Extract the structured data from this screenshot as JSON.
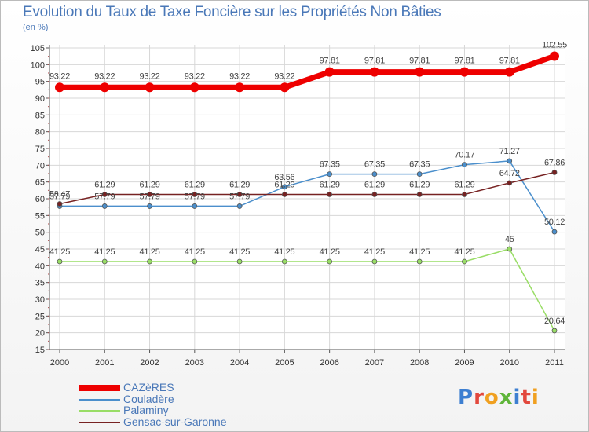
{
  "chart_data": {
    "type": "line",
    "title": "Evolution du Taux de Taxe Foncière sur les Propriétés Non Bâties",
    "ylabel": "(en %)",
    "xlabel": "",
    "ylim": [
      15,
      105
    ],
    "yticks": [
      "15",
      "20",
      "25",
      "30",
      "35",
      "40",
      "45",
      "50",
      "55",
      "60",
      "65",
      "70",
      "75",
      "80",
      "85",
      "90",
      "95",
      "100",
      "105"
    ],
    "categories": [
      "2000",
      "2001",
      "2002",
      "2003",
      "2004",
      "2005",
      "2006",
      "2007",
      "2008",
      "2009",
      "2010",
      "2011"
    ],
    "grid": true,
    "series": [
      {
        "name": "CAZèRES",
        "color": "#ee0000",
        "values": [
          93.22,
          93.22,
          93.22,
          93.22,
          93.22,
          93.22,
          97.81,
          97.81,
          97.81,
          97.81,
          97.81,
          102.55
        ],
        "labels": [
          "93.22",
          "93.22",
          "93.22",
          "93.22",
          "93.22",
          "93.22",
          "97.81",
          "97.81",
          "97.81",
          "97.81",
          "97.81",
          "102.55"
        ]
      },
      {
        "name": "Couladère",
        "color": "#4b8fcc",
        "values": [
          57.79,
          57.79,
          57.79,
          57.79,
          57.79,
          63.56,
          67.35,
          67.35,
          67.35,
          70.17,
          71.27,
          50.12
        ],
        "labels": [
          "57.79",
          "57.79",
          "57.79",
          "57.79",
          "57.79",
          "63.56",
          "67.35",
          "67.35",
          "67.35",
          "70.17",
          "71.27",
          "50.12"
        ]
      },
      {
        "name": "Palaminy",
        "color": "#99dd66",
        "values": [
          41.25,
          41.25,
          41.25,
          41.25,
          41.25,
          41.25,
          41.25,
          41.25,
          41.25,
          41.25,
          45,
          20.64
        ],
        "labels": [
          "41.25",
          "41.25",
          "41.25",
          "41.25",
          "41.25",
          "41.25",
          "41.25",
          "41.25",
          "41.25",
          "41.25",
          "45",
          "20.64"
        ]
      },
      {
        "name": "Gensac-sur-Garonne",
        "color": "#772222",
        "values": [
          58.47,
          61.29,
          61.29,
          61.29,
          61.29,
          61.29,
          61.29,
          61.29,
          61.29,
          61.29,
          64.72,
          67.86
        ],
        "labels": [
          "58.47",
          "61.29",
          "61.29",
          "61.29",
          "61.29",
          "61.29",
          "61.29",
          "61.29",
          "61.29",
          "61.29",
          "64.72",
          "67.86"
        ]
      }
    ]
  },
  "logo": {
    "text": "Proxiti"
  }
}
